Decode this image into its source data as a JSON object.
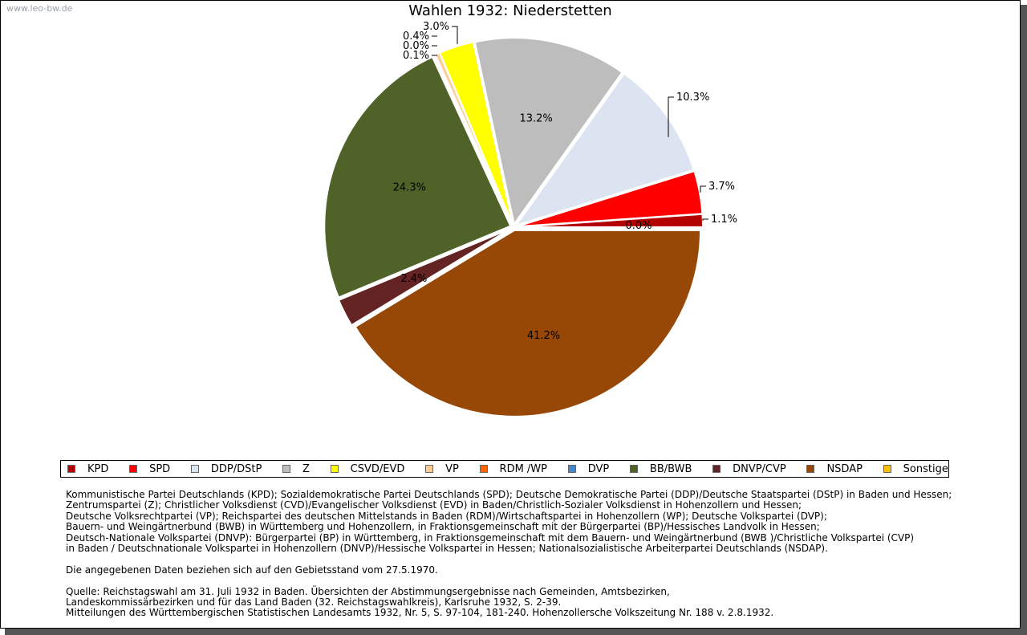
{
  "watermark": "www.leo-bw.de",
  "chart_data": {
    "type": "pie",
    "title": "Wahlen 1932: Niederstetten",
    "slices": [
      {
        "party": "KPD",
        "value": 1.1,
        "label": "1.1%",
        "color": "#b30000"
      },
      {
        "party": "SPD",
        "value": 3.7,
        "label": "3.7%",
        "color": "#ff0000"
      },
      {
        "party": "DDP/DStP",
        "value": 10.3,
        "label": "10.3%",
        "color": "#dbe4f0"
      },
      {
        "party": "Z",
        "value": 13.2,
        "label": "13.2%",
        "color": "#bdbdbd"
      },
      {
        "party": "CSVD/EVD",
        "value": 3.0,
        "label": "3.0%",
        "color": "#ffff00"
      },
      {
        "party": "VP",
        "value": 0.4,
        "label": "0.4%",
        "color": "#ffcc99"
      },
      {
        "party": "RDM /WP",
        "value": 0.0,
        "label": "0.0%",
        "color": "#ff6600"
      },
      {
        "party": "DVP",
        "value": 0.1,
        "label": "0.1%",
        "color": "#4a86c8"
      },
      {
        "party": "BB/BWB",
        "value": 24.3,
        "label": "24.3%",
        "color": "#4f6228"
      },
      {
        "party": "DNVP/CVP",
        "value": 2.4,
        "label": "2.4%",
        "color": "#632423"
      },
      {
        "party": "NSDAP",
        "value": 41.2,
        "label": "41.2%",
        "color": "#974806"
      },
      {
        "party": "Sonstige",
        "value": 0.0,
        "label": "0.0%",
        "color": "#ffc000"
      }
    ]
  },
  "legend": [
    {
      "label": "KPD",
      "color": "#b30000"
    },
    {
      "label": "SPD",
      "color": "#ff0000"
    },
    {
      "label": "DDP/DStP",
      "color": "#dbe4f0"
    },
    {
      "label": "Z",
      "color": "#bdbdbd"
    },
    {
      "label": "CSVD/EVD",
      "color": "#ffff00"
    },
    {
      "label": "VP",
      "color": "#ffcc99"
    },
    {
      "label": "RDM /WP",
      "color": "#ff6600"
    },
    {
      "label": "DVP",
      "color": "#4a86c8"
    },
    {
      "label": "BB/BWB",
      "color": "#4f6228"
    },
    {
      "label": "DNVP/CVP",
      "color": "#632423"
    },
    {
      "label": "NSDAP",
      "color": "#974806"
    },
    {
      "label": "Sonstige",
      "color": "#ffc000"
    }
  ],
  "notes": {
    "parties_1": "Kommunistische Partei Deutschlands (KPD); Sozialdemokratische Partei Deutschlands (SPD); Deutsche Demokratische Partei (DDP)/Deutsche Staatspartei (DStP) in Baden und Hessen;",
    "parties_2": "Zentrumspartei (Z); Christlicher Volksdienst (CVD)/Evangelischer Volksdienst (EVD) in Baden/Christlich-Sozialer Volksdienst in Hohenzollern und Hessen;",
    "parties_3": "Deutsche Volksrechtpartei (VP); Reichspartei des deutschen Mittelstands in Baden (RDM)/Wirtschaftspartei in Hohenzollern (WP); Deutsche Volkspartei (DVP);",
    "parties_4": "Bauern- und Weingärtnerbund (BWB) in Württemberg und Hohenzollern, in Fraktionsgemeinschaft mit der Bürgerpartei (BP)/Hessisches Landvolk in Hessen;",
    "parties_5": "Deutsch-Nationale Volkspartei (DNVP): Bürgerpartei (BP) in Württemberg, in Fraktionsgemeinschaft mit dem Bauern- und Weingärtnerbund (BWB )/Christliche Volkspartei (CVP)",
    "parties_6": "in Baden / Deutschnationale Volkspartei in Hohenzollern (DNVP)/Hessische Volkspartei in Hessen; Nationalsozialistische Arbeiterpartei Deutschlands (NSDAP).",
    "territory": "Die angegebenen Daten beziehen sich auf den Gebietsstand vom 27.5.1970.",
    "source_1": "Quelle: Reichstagswahl am 31. Juli 1932 in Baden. Übersichten der Abstimmungsergebnisse nach Gemeinden, Amtsbezirken,",
    "source_2": "Landeskommissärbezirken und für das Land Baden (32. Reichstagswahlkreis), Karlsruhe 1932, S. 2-39.",
    "source_3": "Mitteilungen des Württembergischen Statistischen Landesamts 1932, Nr. 5, S. 97-104, 181-240. Hohenzollersche Volkszeitung Nr. 188 v. 2.8.1932."
  }
}
